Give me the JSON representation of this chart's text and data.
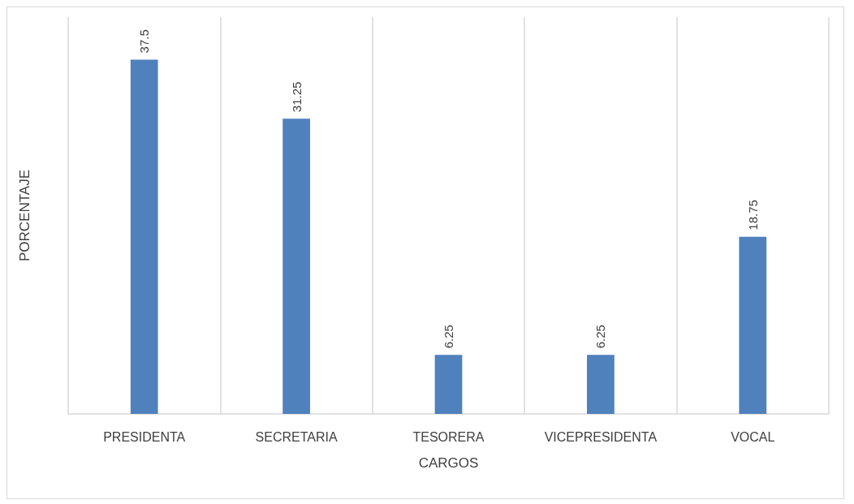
{
  "chart_data": {
    "type": "bar",
    "xlabel": "CARGOS",
    "ylabel": "PORCENTAJE",
    "categories": [
      "PRESIDENTA",
      "SECRETARIA",
      "TESORERA",
      "VICEPRESIDENTA",
      "VOCAL"
    ],
    "values": [
      37.5,
      31.25,
      6.25,
      6.25,
      18.75
    ],
    "color": "#4f81bd",
    "data_labels": true,
    "grid": "x"
  }
}
